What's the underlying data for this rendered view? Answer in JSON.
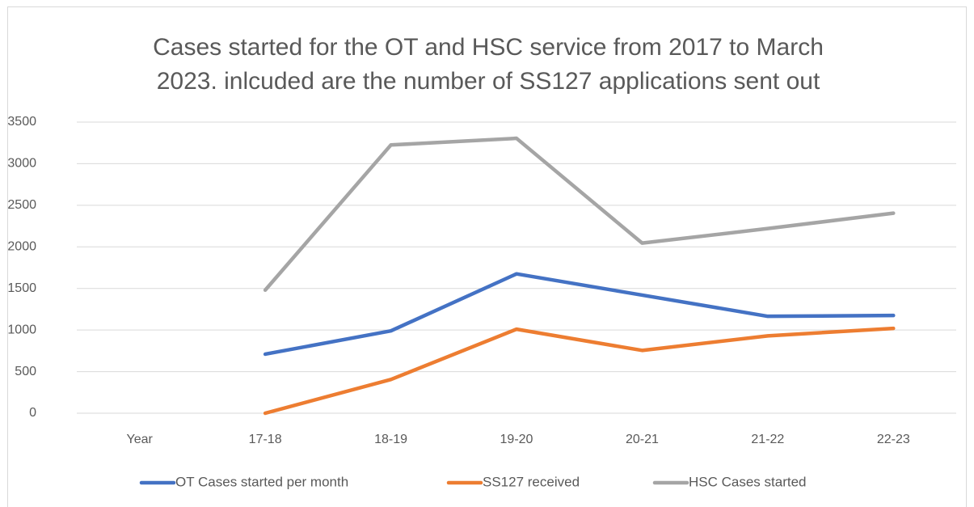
{
  "chart_data": {
    "type": "line",
    "title": [
      "Cases started for the OT and HSC service from 2017 to March",
      "2023. inlcuded are the number of SS127 applications sent out"
    ],
    "categories": [
      "Year",
      "17-18",
      "18-19",
      "19-20",
      "20-21",
      "21-22",
      "22-23"
    ],
    "series": [
      {
        "name": "OT Cases started per month",
        "color": "#4472c4",
        "values": [
          null,
          710,
          990,
          1675,
          1420,
          1165,
          1175
        ]
      },
      {
        "name": "SS127 received",
        "color": "#ed7d31",
        "values": [
          null,
          0,
          405,
          1010,
          755,
          930,
          1020
        ]
      },
      {
        "name": "HSC Cases started",
        "color": "#a5a5a5",
        "values": [
          null,
          1480,
          3225,
          3305,
          2045,
          2220,
          2405
        ]
      }
    ],
    "ylim": [
      0,
      3500
    ],
    "yticks": [
      0,
      500,
      1000,
      1500,
      2000,
      2500,
      3000,
      3500
    ],
    "grid": true,
    "legend": "bottom"
  }
}
